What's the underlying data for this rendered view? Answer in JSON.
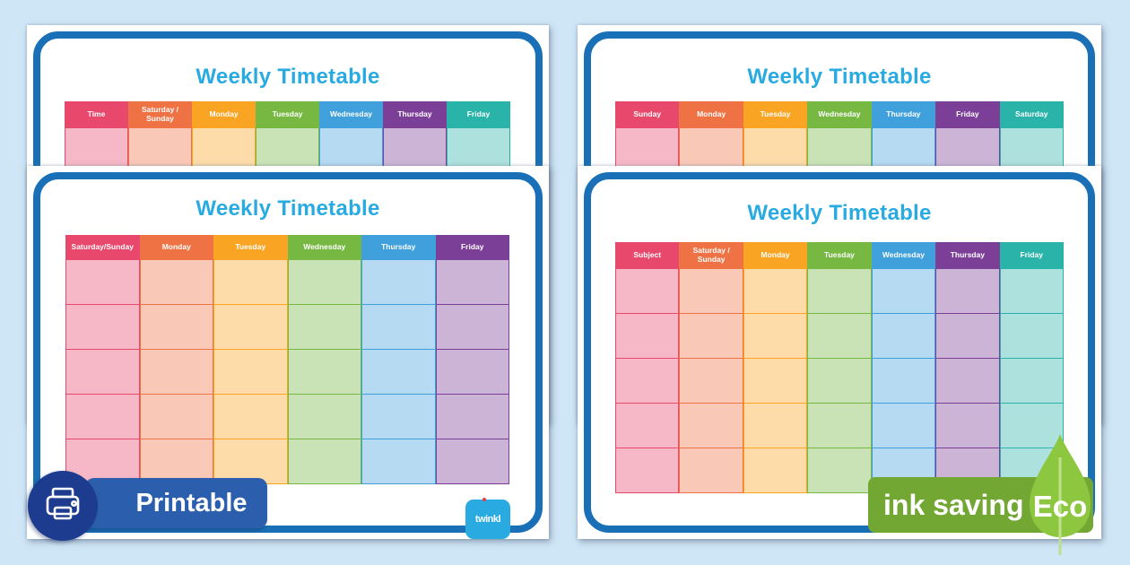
{
  "page": {
    "background_color": "#cfe6f7",
    "sheet_color": "#ffffff",
    "frame_color": "#1a70b6"
  },
  "brand": {
    "logo_text": "twinkl",
    "logo_color": "#29abe2",
    "logo_dot_color": "#ee3a43"
  },
  "badges": {
    "printable": {
      "label": "Printable",
      "banner_color": "#2b5fad",
      "circle_color": "#1d3c8f",
      "icon": "printer-icon"
    },
    "eco": {
      "label": "ink saving",
      "eco_label": "Eco",
      "banner_color": "#72a733",
      "leaf_color": "#8dc63f",
      "stem_color": "#bfe18d"
    }
  },
  "cards": [
    {
      "id": "top-left-time-timetable",
      "title": "Weekly Timetable",
      "title_color": "#29abe2",
      "rows": 5,
      "columns": [
        {
          "label": "Time",
          "color": "#e8486b"
        },
        {
          "label": "Saturday / Sunday",
          "color": "#ef7245"
        },
        {
          "label": "Monday",
          "color": "#f9a423"
        },
        {
          "label": "Tuesday",
          "color": "#77b843"
        },
        {
          "label": "Wednesday",
          "color": "#40a0dc"
        },
        {
          "label": "Thursday",
          "color": "#7c3f98"
        },
        {
          "label": "Friday",
          "color": "#2ab3a9"
        }
      ]
    },
    {
      "id": "top-right-week-timetable",
      "title": "Weekly Timetable",
      "title_color": "#29abe2",
      "rows": 5,
      "columns": [
        {
          "label": "Sunday",
          "color": "#e8486b"
        },
        {
          "label": "Monday",
          "color": "#ef7245"
        },
        {
          "label": "Tuesday",
          "color": "#f9a423"
        },
        {
          "label": "Wednesday",
          "color": "#77b843"
        },
        {
          "label": "Thursday",
          "color": "#40a0dc"
        },
        {
          "label": "Friday",
          "color": "#7c3f98"
        },
        {
          "label": "Saturday",
          "color": "#2ab3a9"
        }
      ]
    },
    {
      "id": "bottom-left-weekend-timetable",
      "title": "Weekly Timetable",
      "title_color": "#29abe2",
      "rows": 5,
      "columns": [
        {
          "label": "Saturday/Sunday",
          "color": "#e8486b"
        },
        {
          "label": "Monday",
          "color": "#ef7245"
        },
        {
          "label": "Tuesday",
          "color": "#f9a423"
        },
        {
          "label": "Wednesday",
          "color": "#77b843"
        },
        {
          "label": "Thursday",
          "color": "#40a0dc"
        },
        {
          "label": "Friday",
          "color": "#7c3f98"
        }
      ]
    },
    {
      "id": "bottom-right-subject-timetable",
      "title": "Weekly Timetable",
      "title_color": "#29abe2",
      "rows": 5,
      "columns": [
        {
          "label": "Subject",
          "color": "#e8486b"
        },
        {
          "label": "Saturday / Sunday",
          "color": "#ef7245"
        },
        {
          "label": "Monday",
          "color": "#f9a423"
        },
        {
          "label": "Tuesday",
          "color": "#77b843"
        },
        {
          "label": "Wednesday",
          "color": "#40a0dc"
        },
        {
          "label": "Thursday",
          "color": "#7c3f98"
        },
        {
          "label": "Friday",
          "color": "#2ab3a9"
        }
      ]
    }
  ]
}
